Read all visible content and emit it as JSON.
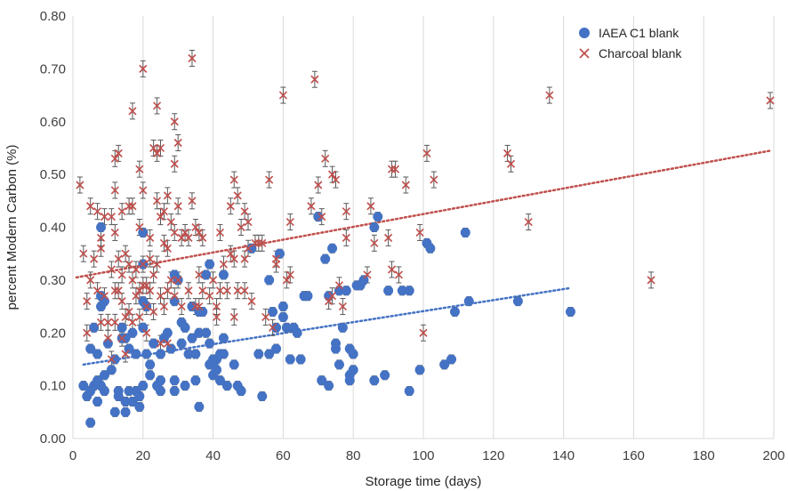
{
  "chart_data": {
    "type": "scatter",
    "xlabel": "Storage time (days)",
    "ylabel": "percent Modern Carbon (%)",
    "xlim": [
      0,
      200
    ],
    "ylim": [
      0,
      0.8
    ],
    "xticks": [
      0,
      20,
      40,
      60,
      80,
      100,
      120,
      140,
      160,
      180,
      200
    ],
    "yticks": [
      0.0,
      0.1,
      0.2,
      0.3,
      0.4,
      0.5,
      0.6,
      0.7,
      0.8
    ],
    "xtick_labels": [
      "0",
      "20",
      "40",
      "60",
      "80",
      "100",
      "120",
      "140",
      "160",
      "180",
      "200"
    ],
    "ytick_labels": [
      "0.00",
      "0.10",
      "0.20",
      "0.30",
      "0.40",
      "0.50",
      "0.60",
      "0.70",
      "0.80"
    ],
    "grid": "vertical",
    "legend_position": "top-right",
    "series": [
      {
        "name": "IAEA C1 blank",
        "marker": "circle",
        "color": "#4472C4",
        "trend_color": "#4472C4",
        "trendline": {
          "x": [
            3,
            142
          ],
          "y": [
            0.14,
            0.285
          ]
        },
        "points": [
          [
            3,
            0.1
          ],
          [
            4,
            0.08
          ],
          [
            5,
            0.09
          ],
          [
            5,
            0.17
          ],
          [
            5,
            0.03
          ],
          [
            6,
            0.1
          ],
          [
            6,
            0.21
          ],
          [
            7,
            0.11
          ],
          [
            7,
            0.07
          ],
          [
            7,
            0.16
          ],
          [
            8,
            0.4
          ],
          [
            8,
            0.27
          ],
          [
            8,
            0.25
          ],
          [
            8,
            0.1
          ],
          [
            9,
            0.09
          ],
          [
            9,
            0.26
          ],
          [
            9,
            0.12
          ],
          [
            10,
            0.18
          ],
          [
            11,
            0.13
          ],
          [
            12,
            0.15
          ],
          [
            12,
            0.05
          ],
          [
            13,
            0.09
          ],
          [
            13,
            0.08
          ],
          [
            14,
            0.21
          ],
          [
            14,
            0.19
          ],
          [
            15,
            0.05
          ],
          [
            15,
            0.07
          ],
          [
            15,
            0.19
          ],
          [
            16,
            0.17
          ],
          [
            16,
            0.09
          ],
          [
            17,
            0.2
          ],
          [
            17,
            0.07
          ],
          [
            18,
            0.16
          ],
          [
            18,
            0.09
          ],
          [
            19,
            0.08
          ],
          [
            19,
            0.06
          ],
          [
            20,
            0.39
          ],
          [
            20,
            0.33
          ],
          [
            20,
            0.26
          ],
          [
            20,
            0.21
          ],
          [
            20,
            0.1
          ],
          [
            21,
            0.25
          ],
          [
            21,
            0.16
          ],
          [
            22,
            0.12
          ],
          [
            22,
            0.14
          ],
          [
            23,
            0.18
          ],
          [
            24,
            0.1
          ],
          [
            25,
            0.11
          ],
          [
            25,
            0.09
          ],
          [
            25,
            0.16
          ],
          [
            26,
            0.19
          ],
          [
            27,
            0.2
          ],
          [
            28,
            0.17
          ],
          [
            29,
            0.31
          ],
          [
            29,
            0.26
          ],
          [
            29,
            0.11
          ],
          [
            29,
            0.09
          ],
          [
            30,
            0.3
          ],
          [
            31,
            0.22
          ],
          [
            31,
            0.18
          ],
          [
            32,
            0.21
          ],
          [
            32,
            0.1
          ],
          [
            33,
            0.16
          ],
          [
            34,
            0.25
          ],
          [
            34,
            0.19
          ],
          [
            35,
            0.16
          ],
          [
            35,
            0.11
          ],
          [
            36,
            0.24
          ],
          [
            36,
            0.2
          ],
          [
            36,
            0.06
          ],
          [
            37,
            0.24
          ],
          [
            38,
            0.31
          ],
          [
            38,
            0.2
          ],
          [
            39,
            0.33
          ],
          [
            39,
            0.18
          ],
          [
            39,
            0.14
          ],
          [
            40,
            0.15
          ],
          [
            40,
            0.14
          ],
          [
            40,
            0.12
          ],
          [
            41,
            0.15
          ],
          [
            41,
            0.13
          ],
          [
            42,
            0.16
          ],
          [
            42,
            0.11
          ],
          [
            43,
            0.31
          ],
          [
            43,
            0.19
          ],
          [
            43,
            0.16
          ],
          [
            44,
            0.1
          ],
          [
            46,
            0.14
          ],
          [
            47,
            0.1
          ],
          [
            48,
            0.09
          ],
          [
            51,
            0.36
          ],
          [
            53,
            0.16
          ],
          [
            54,
            0.08
          ],
          [
            56,
            0.16
          ],
          [
            56,
            0.3
          ],
          [
            57,
            0.24
          ],
          [
            58,
            0.21
          ],
          [
            58,
            0.17
          ],
          [
            59,
            0.35
          ],
          [
            60,
            0.23
          ],
          [
            60,
            0.25
          ],
          [
            61,
            0.21
          ],
          [
            62,
            0.15
          ],
          [
            63,
            0.21
          ],
          [
            64,
            0.2
          ],
          [
            65,
            0.15
          ],
          [
            66,
            0.27
          ],
          [
            67,
            0.27
          ],
          [
            70,
            0.42
          ],
          [
            71,
            0.11
          ],
          [
            72,
            0.34
          ],
          [
            73,
            0.1
          ],
          [
            73,
            0.27
          ],
          [
            74,
            0.36
          ],
          [
            75,
            0.17
          ],
          [
            75,
            0.18
          ],
          [
            76,
            0.28
          ],
          [
            76,
            0.14
          ],
          [
            77,
            0.21
          ],
          [
            78,
            0.28
          ],
          [
            79,
            0.17
          ],
          [
            79,
            0.12
          ],
          [
            79,
            0.11
          ],
          [
            80,
            0.13
          ],
          [
            80,
            0.16
          ],
          [
            81,
            0.29
          ],
          [
            82,
            0.29
          ],
          [
            83,
            0.3
          ],
          [
            86,
            0.11
          ],
          [
            86,
            0.4
          ],
          [
            87,
            0.42
          ],
          [
            89,
            0.12
          ],
          [
            90,
            0.28
          ],
          [
            94,
            0.28
          ],
          [
            96,
            0.09
          ],
          [
            96,
            0.28
          ],
          [
            99,
            0.13
          ],
          [
            101,
            0.37
          ],
          [
            102,
            0.36
          ],
          [
            106,
            0.14
          ],
          [
            108,
            0.15
          ],
          [
            109,
            0.24
          ],
          [
            112,
            0.39
          ],
          [
            113,
            0.26
          ],
          [
            127,
            0.26
          ],
          [
            142,
            0.24
          ]
        ]
      },
      {
        "name": "Charcoal blank",
        "marker": "x",
        "color": "#C0504D",
        "trend_color": "#C0504D",
        "trendline": {
          "x": [
            1,
            199
          ],
          "y": [
            0.305,
            0.545
          ]
        },
        "points": [
          [
            2,
            0.48
          ],
          [
            3,
            0.35
          ],
          [
            4,
            0.26
          ],
          [
            4,
            0.2
          ],
          [
            5,
            0.44
          ],
          [
            5,
            0.3
          ],
          [
            6,
            0.34
          ],
          [
            7,
            0.43
          ],
          [
            7,
            0.28
          ],
          [
            8,
            0.38
          ],
          [
            8,
            0.22
          ],
          [
            8,
            0.36
          ],
          [
            9,
            0.42
          ],
          [
            9,
            0.27
          ],
          [
            10,
            0.22
          ],
          [
            10,
            0.19
          ],
          [
            11,
            0.42
          ],
          [
            11,
            0.32
          ],
          [
            11,
            0.15
          ],
          [
            12,
            0.53
          ],
          [
            12,
            0.47
          ],
          [
            12,
            0.39
          ],
          [
            12,
            0.28
          ],
          [
            12,
            0.22
          ],
          [
            13,
            0.54
          ],
          [
            13,
            0.34
          ],
          [
            13,
            0.28
          ],
          [
            14,
            0.43
          ],
          [
            14,
            0.31
          ],
          [
            14,
            0.26
          ],
          [
            14,
            0.19
          ],
          [
            15,
            0.35
          ],
          [
            15,
            0.23
          ],
          [
            15,
            0.16
          ],
          [
            16,
            0.44
          ],
          [
            16,
            0.33
          ],
          [
            16,
            0.24
          ],
          [
            17,
            0.62
          ],
          [
            17,
            0.44
          ],
          [
            17,
            0.3
          ],
          [
            17,
            0.22
          ],
          [
            18,
            0.32
          ],
          [
            18,
            0.27
          ],
          [
            19,
            0.51
          ],
          [
            19,
            0.4
          ],
          [
            19,
            0.28
          ],
          [
            19,
            0.23
          ],
          [
            20,
            0.7
          ],
          [
            20,
            0.47
          ],
          [
            20,
            0.33
          ],
          [
            20,
            0.29
          ],
          [
            21,
            0.29
          ],
          [
            21,
            0.25
          ],
          [
            21,
            0.2
          ],
          [
            22,
            0.38
          ],
          [
            22,
            0.34
          ],
          [
            22,
            0.28
          ],
          [
            23,
            0.55
          ],
          [
            23,
            0.31
          ],
          [
            23,
            0.24
          ],
          [
            24,
            0.63
          ],
          [
            24,
            0.54
          ],
          [
            24,
            0.45
          ],
          [
            24,
            0.33
          ],
          [
            25,
            0.55
          ],
          [
            25,
            0.42
          ],
          [
            25,
            0.27
          ],
          [
            25,
            0.18
          ],
          [
            26,
            0.43
          ],
          [
            26,
            0.37
          ],
          [
            26,
            0.25
          ],
          [
            27,
            0.46
          ],
          [
            27,
            0.36
          ],
          [
            27,
            0.28
          ],
          [
            27,
            0.18
          ],
          [
            28,
            0.41
          ],
          [
            28,
            0.3
          ],
          [
            29,
            0.6
          ],
          [
            29,
            0.52
          ],
          [
            29,
            0.39
          ],
          [
            29,
            0.27
          ],
          [
            30,
            0.56
          ],
          [
            30,
            0.44
          ],
          [
            30,
            0.3
          ],
          [
            31,
            0.38
          ],
          [
            31,
            0.25
          ],
          [
            32,
            0.39
          ],
          [
            33,
            0.38
          ],
          [
            33,
            0.28
          ],
          [
            34,
            0.72
          ],
          [
            34,
            0.45
          ],
          [
            35,
            0.4
          ],
          [
            35,
            0.25
          ],
          [
            36,
            0.39
          ],
          [
            36,
            0.31
          ],
          [
            36,
            0.25
          ],
          [
            37,
            0.38
          ],
          [
            37,
            0.28
          ],
          [
            39,
            0.27
          ],
          [
            40,
            0.3
          ],
          [
            41,
            0.25
          ],
          [
            41,
            0.23
          ],
          [
            42,
            0.39
          ],
          [
            42,
            0.28
          ],
          [
            43,
            0.33
          ],
          [
            44,
            0.28
          ],
          [
            45,
            0.44
          ],
          [
            45,
            0.35
          ],
          [
            46,
            0.49
          ],
          [
            46,
            0.34
          ],
          [
            46,
            0.23
          ],
          [
            47,
            0.46
          ],
          [
            47,
            0.28
          ],
          [
            48,
            0.4
          ],
          [
            49,
            0.43
          ],
          [
            49,
            0.34
          ],
          [
            49,
            0.28
          ],
          [
            50,
            0.41
          ],
          [
            50,
            0.36
          ],
          [
            51,
            0.26
          ],
          [
            52,
            0.37
          ],
          [
            53,
            0.37
          ],
          [
            54,
            0.37
          ],
          [
            55,
            0.23
          ],
          [
            56,
            0.49
          ],
          [
            57,
            0.21
          ],
          [
            58,
            0.33
          ],
          [
            58,
            0.34
          ],
          [
            60,
            0.65
          ],
          [
            61,
            0.3
          ],
          [
            62,
            0.41
          ],
          [
            62,
            0.31
          ],
          [
            68,
            0.44
          ],
          [
            69,
            0.68
          ],
          [
            70,
            0.48
          ],
          [
            71,
            0.42
          ],
          [
            72,
            0.53
          ],
          [
            73,
            0.26
          ],
          [
            74,
            0.5
          ],
          [
            74,
            0.27
          ],
          [
            75,
            0.49
          ],
          [
            76,
            0.29
          ],
          [
            77,
            0.25
          ],
          [
            78,
            0.43
          ],
          [
            78,
            0.38
          ],
          [
            84,
            0.31
          ],
          [
            85,
            0.44
          ],
          [
            86,
            0.37
          ],
          [
            90,
            0.38
          ],
          [
            91,
            0.32
          ],
          [
            91,
            0.51
          ],
          [
            92,
            0.51
          ],
          [
            93,
            0.31
          ],
          [
            95,
            0.48
          ],
          [
            99,
            0.39
          ],
          [
            100,
            0.2
          ],
          [
            101,
            0.54
          ],
          [
            103,
            0.49
          ],
          [
            124,
            0.54
          ],
          [
            125,
            0.52
          ],
          [
            130,
            0.41
          ],
          [
            136,
            0.65
          ],
          [
            165,
            0.3
          ],
          [
            199,
            0.64
          ]
        ]
      }
    ]
  }
}
